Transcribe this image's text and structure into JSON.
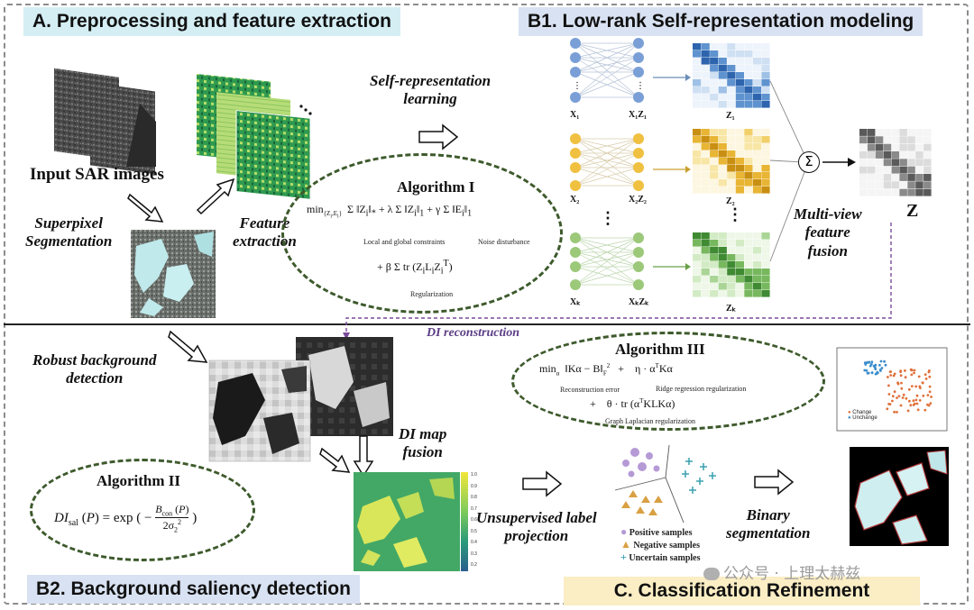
{
  "sections": {
    "a": "A. Preprocessing and feature extraction",
    "b1": "B1. Low-rank Self-representation modeling",
    "b2": "B2. Background saliency detection",
    "c": "C. Classification Refinement"
  },
  "labels": {
    "input_sar": "Input SAR images",
    "superpixel": "Superpixel\nSegmentation",
    "feature_extraction": "Feature\nextraction",
    "self_rep": "Self-representation\nlearning",
    "multiview": "Multi-view\nfeature\nfusion",
    "z_out": "Z",
    "robust_bg": "Robust background\ndetection",
    "di_recon": "DI reconstruction",
    "di_fusion": "DI map\nfusion",
    "unsup_label": "Unsupervised label\nprojection",
    "binary_seg": "Binary\nsegmentation"
  },
  "algorithm1": {
    "title": "Algorithm I",
    "cap_local": "Local and global constraints",
    "cap_noise": "Noise disturbance",
    "cap_reg": "Regularization"
  },
  "algorithm2": {
    "title": "Algorithm II"
  },
  "algorithm3": {
    "title": "Algorithm III",
    "cap_recon": "Reconstruction error",
    "cap_ridge": "Ridge regression regularization",
    "cap_graph": "Graph Laplacian regularization"
  },
  "matrices": {
    "x1": "X₁",
    "xz1": "X₁Z₁",
    "z1": "Z₁",
    "x2": "X₂",
    "xz2": "X₂Z₂",
    "z2": "Z₂",
    "xk": "Xₖ",
    "xzk": "XₖZₖ",
    "zk": "Zₖ",
    "sum_symbol": "Σ"
  },
  "scatter_legend": [
    "Change",
    "Unchange"
  ],
  "samples_legend": [
    "Positive samples",
    "Negative samples",
    "Uncertain samples"
  ],
  "colorbar_ticks": [
    "1.0",
    "0.9",
    "0.8",
    "0.7",
    "0.6",
    "0.5",
    "0.4",
    "0.3",
    "0.2"
  ],
  "watermark": "公众号 · 上理太赫兹",
  "colors": {
    "net_blue": "#7a9fd6",
    "net_yellow": "#f0c040",
    "net_green": "#9cc87a",
    "algo_border": "#3d5a2c",
    "feature_green": "#3faa5a",
    "di_green": "#43a866",
    "change_orange": "#e0703a",
    "unchange_blue": "#3a8ccc"
  }
}
